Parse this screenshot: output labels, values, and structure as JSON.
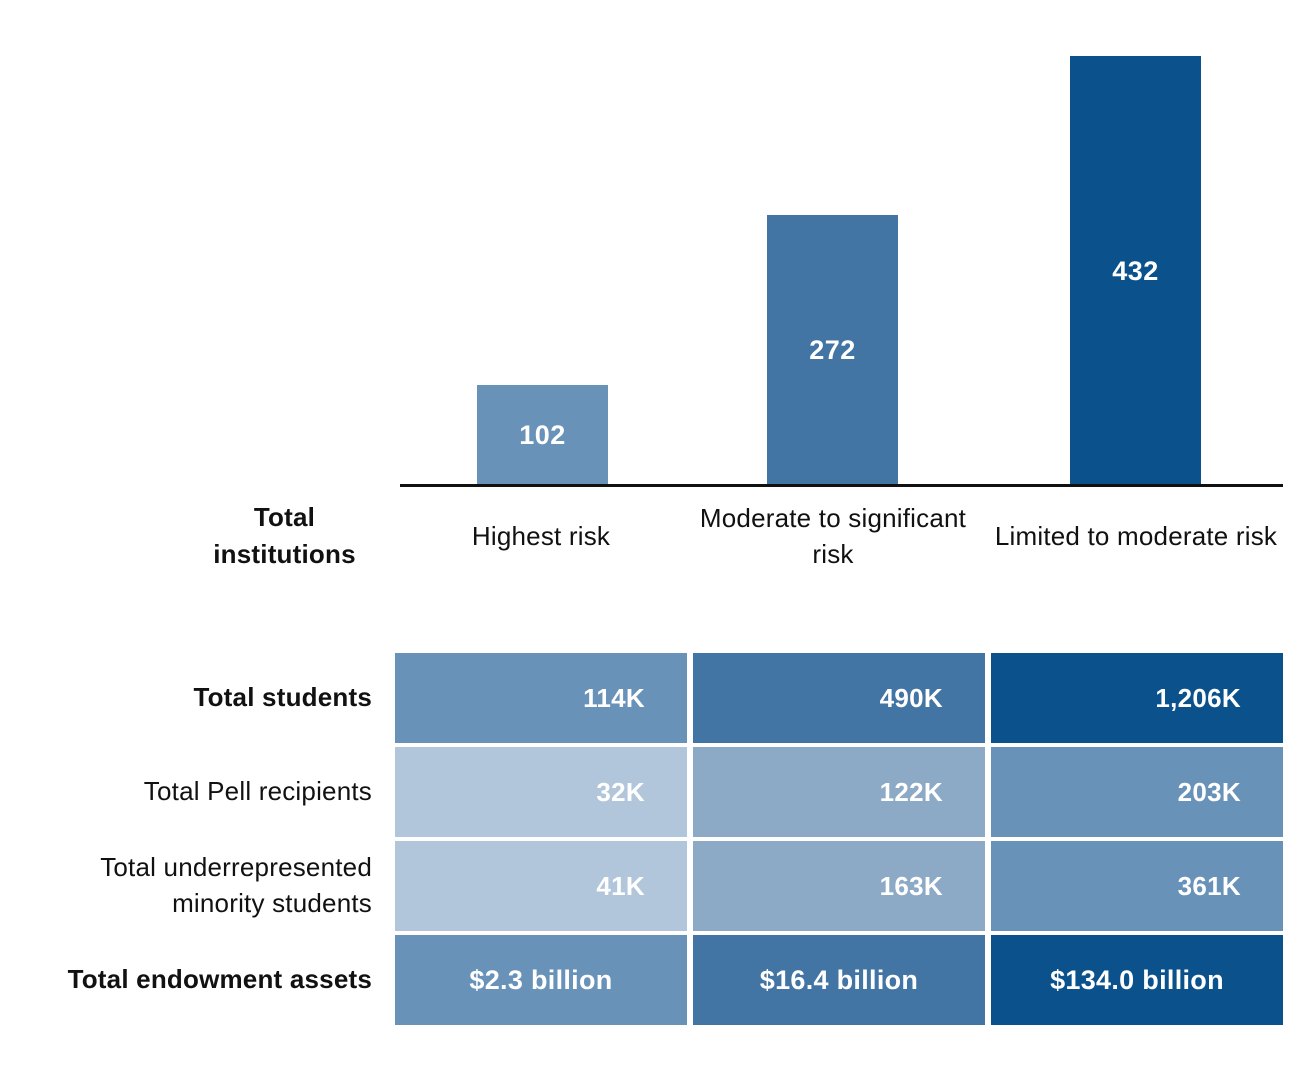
{
  "chart_data": {
    "type": "bar",
    "title": "",
    "series_label": "Total institutions",
    "categories": [
      "Highest risk",
      "Moderate to significant risk",
      "Limited to moderate risk"
    ],
    "values": [
      102,
      272,
      432
    ],
    "value_labels": [
      "102",
      "272",
      "432"
    ],
    "ylim": [
      0,
      450
    ],
    "grid": false,
    "legend": "none",
    "bar_colors": [
      "#6892B8",
      "#4274A4",
      "#0B528C"
    ],
    "table_rows": [
      {
        "label": "Total students",
        "values": [
          "114K",
          "490K",
          "1,206K"
        ],
        "colors": [
          "#6892B8",
          "#4274A4",
          "#0B528C"
        ]
      },
      {
        "label": "Total Pell recipients",
        "values": [
          "32K",
          "122K",
          "203K"
        ],
        "colors": [
          "#B2C6DB",
          "#8CA9C6",
          "#6892B8"
        ]
      },
      {
        "label": "Total underrepresented minority students",
        "values": [
          "41K",
          "163K",
          "361K"
        ],
        "colors": [
          "#B2C6DB",
          "#8CA9C6",
          "#6892B8"
        ]
      },
      {
        "label": "Total endowment assets",
        "values": [
          "$2.3 billion",
          "$16.4 billion",
          "$134.0 billion"
        ],
        "colors": [
          "#6892B8",
          "#4274A4",
          "#0B528C"
        ]
      }
    ]
  },
  "palette": {
    "light": "#B2C6DB",
    "medium_light": "#8CA9C6",
    "medium": "#6892B8",
    "steel": "#4274A4",
    "dark": "#0B528C",
    "axis": "#111111",
    "text": "#111111",
    "cell_text": "#FFFFFF"
  }
}
